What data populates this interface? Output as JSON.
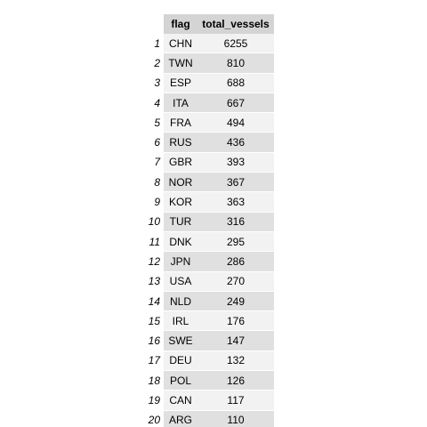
{
  "table": {
    "columns": [
      "flag",
      "total_vessels"
    ],
    "rows": [
      {
        "index": "1",
        "flag": "CHN",
        "total_vessels": "6255"
      },
      {
        "index": "2",
        "flag": "TWN",
        "total_vessels": "810"
      },
      {
        "index": "3",
        "flag": "ESP",
        "total_vessels": "688"
      },
      {
        "index": "4",
        "flag": "ITA",
        "total_vessels": "667"
      },
      {
        "index": "5",
        "flag": "FRA",
        "total_vessels": "494"
      },
      {
        "index": "6",
        "flag": "RUS",
        "total_vessels": "436"
      },
      {
        "index": "7",
        "flag": "GBR",
        "total_vessels": "393"
      },
      {
        "index": "8",
        "flag": "NOR",
        "total_vessels": "367"
      },
      {
        "index": "9",
        "flag": "KOR",
        "total_vessels": "363"
      },
      {
        "index": "10",
        "flag": "TUR",
        "total_vessels": "316"
      },
      {
        "index": "11",
        "flag": "DNK",
        "total_vessels": "295"
      },
      {
        "index": "12",
        "flag": "JPN",
        "total_vessels": "286"
      },
      {
        "index": "13",
        "flag": "USA",
        "total_vessels": "270"
      },
      {
        "index": "14",
        "flag": "NLD",
        "total_vessels": "249"
      },
      {
        "index": "15",
        "flag": "IRL",
        "total_vessels": "176"
      },
      {
        "index": "16",
        "flag": "SWE",
        "total_vessels": "147"
      },
      {
        "index": "17",
        "flag": "DEU",
        "total_vessels": "132"
      },
      {
        "index": "18",
        "flag": "POL",
        "total_vessels": "126"
      },
      {
        "index": "19",
        "flag": "CAN",
        "total_vessels": "117"
      },
      {
        "index": "20",
        "flag": "ARG",
        "total_vessels": "110"
      }
    ]
  }
}
